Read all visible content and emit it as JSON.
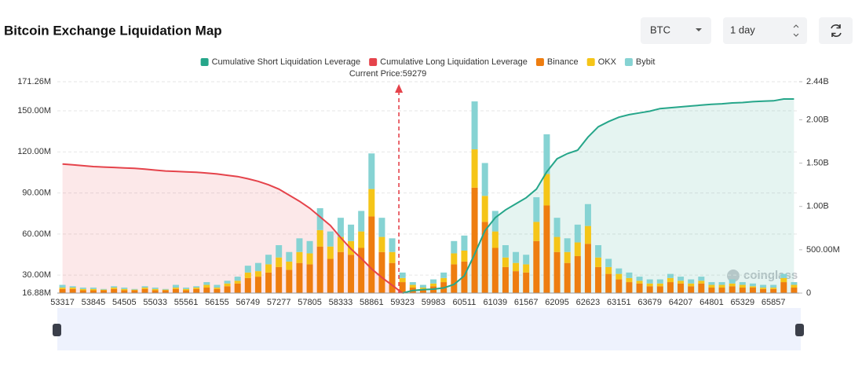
{
  "controls": {
    "symbol": "BTC",
    "range": "1 day"
  },
  "watermark": "coinglass",
  "chart_data": {
    "type": "bar",
    "title": "Bitcoin Exchange Liquidation Map",
    "annotation": "Current Price:59279",
    "stacked": true,
    "grid": true,
    "legend": "top",
    "categories": [
      "53317",
      null,
      null,
      "53845",
      null,
      null,
      "54505",
      null,
      null,
      "55033",
      null,
      null,
      "55561",
      null,
      null,
      "56155",
      null,
      null,
      "56749",
      null,
      null,
      "57277",
      null,
      null,
      "57805",
      null,
      null,
      "58333",
      null,
      null,
      "58861",
      null,
      null,
      "59323",
      null,
      null,
      "59983",
      null,
      null,
      "60511",
      null,
      null,
      "61039",
      null,
      null,
      "61567",
      null,
      null,
      "62095",
      null,
      null,
      "62623",
      null,
      null,
      "63151",
      null,
      null,
      "63679",
      null,
      null,
      "64207",
      null,
      null,
      "64801",
      null,
      null,
      "65329",
      null,
      null,
      "65857",
      null,
      null
    ],
    "ylim": [
      16.88,
      171.26
    ],
    "yticks": [
      {
        "value": 16.88,
        "label": "16.88M"
      },
      {
        "value": 30,
        "label": "30.00M"
      },
      {
        "value": 60,
        "label": "60.00M"
      },
      {
        "value": 90,
        "label": "90.00M"
      },
      {
        "value": 120,
        "label": "120.00M"
      },
      {
        "value": 150,
        "label": "150.00M"
      },
      {
        "value": 171.26,
        "label": "171.26M"
      }
    ],
    "y2lim": [
      0,
      2440
    ],
    "y2ticks": [
      0,
      {
        "value": 500,
        "label": "500.00M"
      },
      {
        "value": 1000,
        "label": "1.00B"
      },
      {
        "value": 1500,
        "label": "1.50B"
      },
      {
        "value": 2000,
        "label": "2.00B"
      },
      {
        "value": 2440,
        "label": "2.44B"
      }
    ],
    "series": [
      {
        "name": "Cumulative Short Liquidation Leverage",
        "type": "line",
        "axis": "y2",
        "color": "#26a68a",
        "values": [
          null,
          null,
          null,
          null,
          null,
          null,
          null,
          null,
          null,
          null,
          null,
          null,
          null,
          null,
          null,
          null,
          null,
          null,
          null,
          null,
          null,
          null,
          null,
          null,
          null,
          null,
          null,
          null,
          null,
          null,
          null,
          null,
          null,
          0,
          30,
          40,
          45,
          60,
          100,
          200,
          450,
          720,
          870,
          960,
          1030,
          1100,
          1200,
          1400,
          1550,
          1610,
          1650,
          1800,
          1920,
          1980,
          2030,
          2060,
          2080,
          2100,
          2130,
          2140,
          2150,
          2160,
          2170,
          2180,
          2185,
          2195,
          2200,
          2210,
          2215,
          2220,
          2240,
          2240
        ]
      },
      {
        "name": "Cumulative Long Liquidation Leverage",
        "type": "line",
        "axis": "y2",
        "color": "#e5434b",
        "values": [
          1490,
          1480,
          1470,
          1460,
          1455,
          1450,
          1445,
          1440,
          1430,
          1420,
          1410,
          1405,
          1400,
          1395,
          1385,
          1375,
          1360,
          1345,
          1320,
          1290,
          1250,
          1200,
          1130,
          1060,
          980,
          880,
          780,
          640,
          510,
          400,
          280,
          180,
          90,
          0,
          null,
          null,
          null,
          null,
          null,
          null,
          null,
          null,
          null,
          null,
          null,
          null,
          null,
          null,
          null,
          null,
          null,
          null,
          null,
          null,
          null,
          null,
          null,
          null,
          null,
          null,
          null,
          null,
          null,
          null,
          null,
          null,
          null,
          null,
          null,
          null,
          null,
          null
        ]
      },
      {
        "name": "Binance",
        "type": "bar",
        "color": "#ee7d10",
        "values": [
          3,
          3,
          2,
          2,
          2,
          3,
          2,
          2,
          3,
          2,
          2,
          3,
          2,
          3,
          4,
          3,
          5,
          7,
          11,
          12,
          15,
          19,
          17,
          22,
          21,
          34,
          25,
          30,
          28,
          33,
          56,
          30,
          22,
          8,
          4,
          3,
          5,
          8,
          21,
          23,
          77,
          52,
          33,
          19,
          16,
          15,
          38,
          64,
          30,
          22,
          27,
          36,
          19,
          14,
          10,
          8,
          7,
          5,
          5,
          8,
          7,
          5,
          7,
          4,
          4,
          5,
          4,
          4,
          3,
          3,
          8,
          4
        ]
      },
      {
        "name": "OKX",
        "type": "bar",
        "color": "#f5c518",
        "values": [
          1,
          1,
          1,
          1,
          0.5,
          1,
          1,
          0.5,
          1,
          1,
          0.5,
          1,
          1,
          1,
          2,
          1,
          2,
          2,
          4,
          4,
          6,
          7,
          6,
          8,
          8,
          12,
          9,
          11,
          10,
          12,
          20,
          11,
          8,
          3,
          2,
          1,
          2,
          3,
          8,
          8,
          28,
          19,
          12,
          7,
          6,
          6,
          14,
          23,
          11,
          8,
          10,
          13,
          7,
          5,
          4,
          3,
          2,
          2,
          2,
          3,
          2,
          2,
          2,
          2,
          2,
          2,
          2,
          1,
          1,
          1,
          3,
          2
        ]
      },
      {
        "name": "Bybit",
        "type": "bar",
        "color": "#86d3d3",
        "values": [
          2,
          1,
          1,
          1,
          0.5,
          1,
          1,
          0.5,
          1,
          1,
          0.5,
          2,
          1,
          1,
          2,
          2,
          2,
          3,
          5,
          6,
          7,
          9,
          7,
          10,
          9,
          16,
          11,
          14,
          12,
          15,
          26,
          14,
          10,
          4,
          2,
          2,
          3,
          4,
          9,
          11,
          35,
          24,
          15,
          9,
          8,
          7,
          18,
          29,
          14,
          10,
          13,
          16,
          9,
          6,
          4,
          4,
          3,
          3,
          3,
          3,
          3,
          3,
          3,
          2,
          2,
          3,
          2,
          2,
          2,
          2,
          3,
          2
        ]
      }
    ]
  }
}
